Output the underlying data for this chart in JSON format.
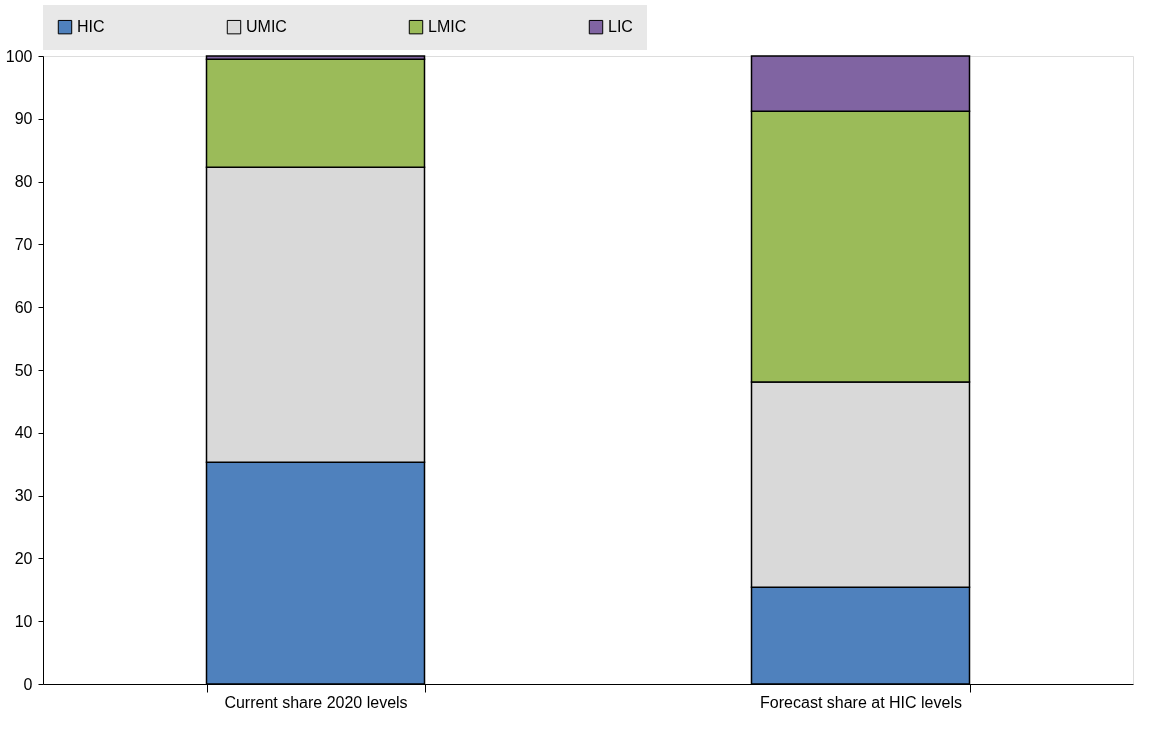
{
  "chart_data": {
    "type": "bar",
    "stacked": true,
    "categories": [
      "Current share 2020 levels",
      "Forecast share at HIC levels"
    ],
    "series": [
      {
        "name": "HIC",
        "color": "#4f81bd",
        "values": [
          35.3,
          15.4
        ]
      },
      {
        "name": "UMIC",
        "color": "#d9d9d9",
        "values": [
          47.0,
          32.7
        ]
      },
      {
        "name": "LMIC",
        "color": "#9bbb59",
        "values": [
          17.2,
          43.1
        ]
      },
      {
        "name": "LIC",
        "color": "#8064a2",
        "values": [
          0.5,
          8.8
        ]
      }
    ],
    "ylim": [
      0,
      100
    ],
    "yticks": [
      0,
      10,
      20,
      30,
      40,
      50,
      60,
      70,
      80,
      90,
      100
    ],
    "grid": false,
    "legend": "top"
  }
}
